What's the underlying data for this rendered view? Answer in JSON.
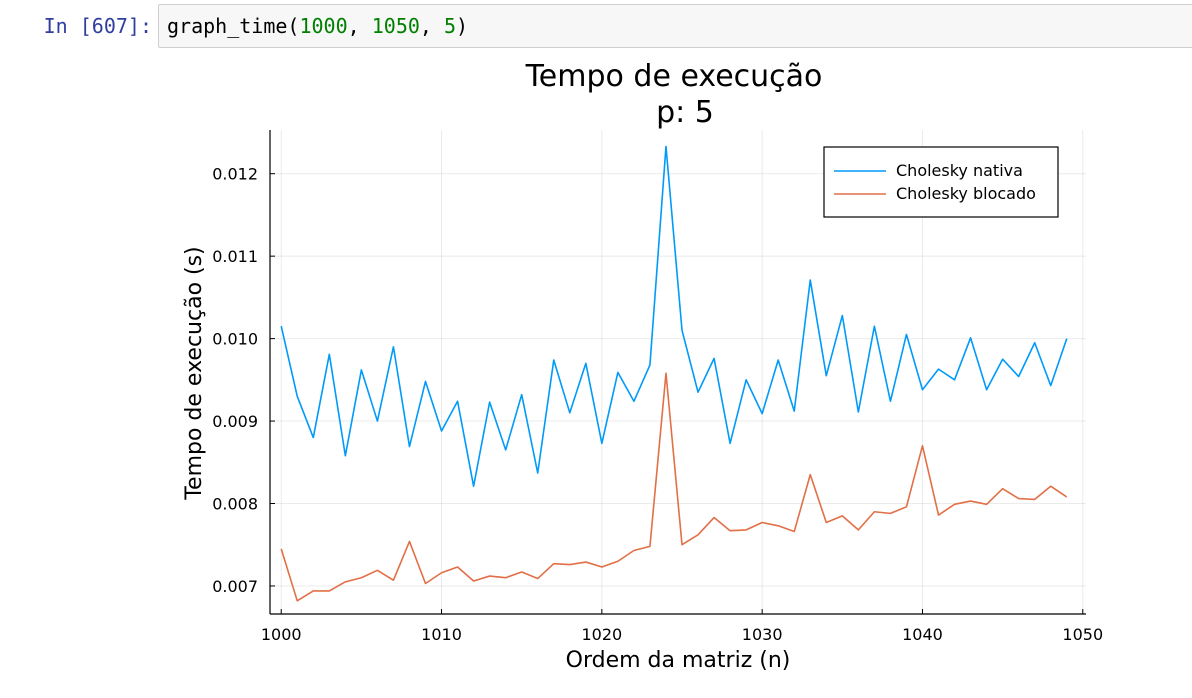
{
  "cell": {
    "prompt": "In [607]:",
    "code": {
      "fn": "graph_time",
      "open": "(",
      "arg1": "1000",
      "sep1": ", ",
      "arg2": "1050",
      "sep2": ", ",
      "arg3": "5",
      "close": ")"
    }
  },
  "chart_data": {
    "type": "line",
    "title": "Tempo de execução",
    "subtitle": "p: 5",
    "xlabel": "Ordem da matriz (n)",
    "ylabel": "Tempo de execução (s)",
    "xlim": [
      999.3,
      1050.2
    ],
    "ylim": [
      0.00666,
      0.01253
    ],
    "x_ticks": [
      1000,
      1010,
      1020,
      1030,
      1040,
      1050
    ],
    "y_ticks": [
      0.007,
      0.008,
      0.009,
      0.01,
      0.011,
      0.012
    ],
    "y_tick_labels": [
      "0.007",
      "0.008",
      "0.009",
      "0.010",
      "0.011",
      "0.012"
    ],
    "grid": true,
    "legend_position": "top-right",
    "x": [
      1000,
      1001,
      1002,
      1003,
      1004,
      1005,
      1006,
      1007,
      1008,
      1009,
      1010,
      1011,
      1012,
      1013,
      1014,
      1015,
      1016,
      1017,
      1018,
      1019,
      1020,
      1021,
      1022,
      1023,
      1024,
      1025,
      1026,
      1027,
      1028,
      1029,
      1030,
      1031,
      1032,
      1033,
      1034,
      1035,
      1036,
      1037,
      1038,
      1039,
      1040,
      1041,
      1042,
      1043,
      1044,
      1045,
      1046,
      1047,
      1048,
      1049
    ],
    "series": [
      {
        "name": "Cholesky nativa",
        "color": "#009AFA",
        "values": [
          0.01015,
          0.0093,
          0.0088,
          0.00981,
          0.00858,
          0.00962,
          0.009,
          0.0099,
          0.00869,
          0.00948,
          0.00888,
          0.00924,
          0.00821,
          0.00923,
          0.00865,
          0.00932,
          0.00837,
          0.00974,
          0.0091,
          0.0097,
          0.00873,
          0.00959,
          0.00924,
          0.00968,
          0.01233,
          0.0101,
          0.00935,
          0.00976,
          0.00873,
          0.0095,
          0.00909,
          0.00974,
          0.00912,
          0.01071,
          0.00955,
          0.01028,
          0.00911,
          0.01015,
          0.00924,
          0.01005,
          0.00938,
          0.00963,
          0.0095,
          0.01001,
          0.00938,
          0.00975,
          0.00954,
          0.00995,
          0.00943,
          0.01
        ]
      },
      {
        "name": "Cholesky blocado",
        "color": "#E26F46",
        "values": [
          0.00745,
          0.00682,
          0.00694,
          0.00694,
          0.00705,
          0.0071,
          0.00719,
          0.00707,
          0.00754,
          0.00703,
          0.00716,
          0.00723,
          0.00706,
          0.00712,
          0.0071,
          0.00717,
          0.00709,
          0.00727,
          0.00726,
          0.00729,
          0.00723,
          0.0073,
          0.00743,
          0.00748,
          0.00958,
          0.0075,
          0.00762,
          0.00783,
          0.00767,
          0.00768,
          0.00777,
          0.00773,
          0.00766,
          0.00835,
          0.00777,
          0.00785,
          0.00768,
          0.0079,
          0.00788,
          0.00796,
          0.0087,
          0.00786,
          0.00799,
          0.00803,
          0.00799,
          0.00818,
          0.00806,
          0.00805,
          0.00821,
          0.00808
        ]
      }
    ]
  }
}
